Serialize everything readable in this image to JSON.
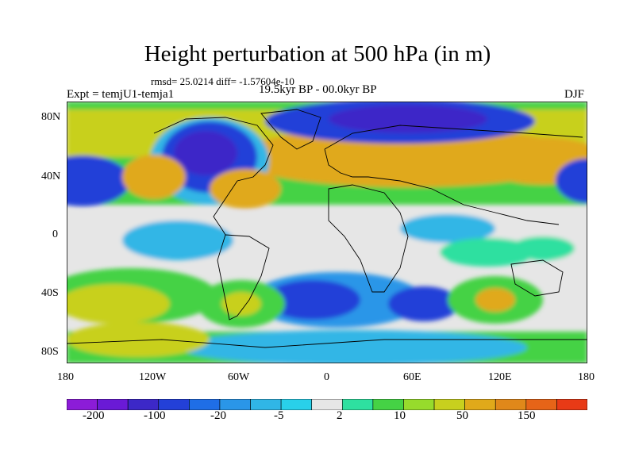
{
  "title": "Height perturbation at 500 hPa (in m)",
  "stats_text": "rmsd= 25.0214 diff= -1.57604e-10",
  "left_label": "Expt = temjU1-temja1",
  "center_label": "19.5kyr BP - 00.0kyr BP",
  "right_label": "DJF",
  "lat_labels": [
    "80N",
    "40N",
    "0",
    "40S",
    "80S"
  ],
  "lon_labels": [
    "180",
    "120W",
    "60W",
    "0",
    "60E",
    "120E",
    "180"
  ],
  "colorbar": {
    "colors": [
      "#8c1cd8",
      "#6a1ad6",
      "#3c28c8",
      "#2340d8",
      "#1f6ee6",
      "#2a96e8",
      "#30b6e6",
      "#29d0ea",
      "#e6e6e6",
      "#2ee0a0",
      "#45d245",
      "#97db2c",
      "#c8d01e",
      "#e0a91a",
      "#e0881a",
      "#e66418",
      "#e83a16"
    ],
    "tick_labels": [
      "-200",
      "-100",
      "-20",
      "-5",
      "2",
      "10",
      "50",
      "150"
    ]
  },
  "field_colors": {
    "neutral": "#e6e6e6",
    "deep_low": "#3c28c8",
    "low": "#2340d8",
    "mid_low": "#2a96e8",
    "weak_low": "#30b6e6",
    "weak_high": "#2ee0a0",
    "mid_high": "#45d245",
    "high": "#c8d01e",
    "strong_high": "#e0a91a",
    "peak": "#e0881a"
  }
}
